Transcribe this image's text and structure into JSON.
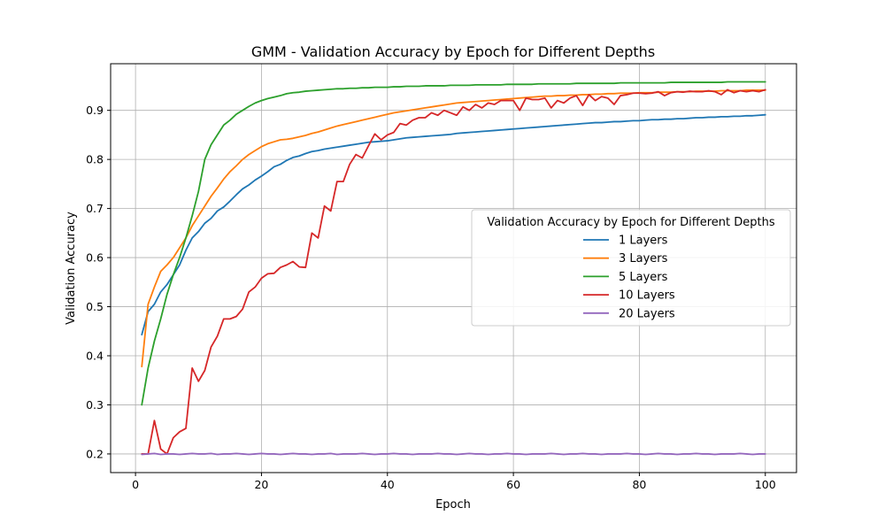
{
  "chart_data": {
    "type": "line",
    "title": "GMM - Validation Accuracy by Epoch for Different Depths",
    "xlabel": "Epoch",
    "ylabel": "Validation Accuracy",
    "xlim": [
      -3.95,
      104.95
    ],
    "ylim": [
      0.162,
      0.995
    ],
    "xticks": [
      0,
      20,
      40,
      60,
      80,
      100
    ],
    "xtick_labels": [
      "0",
      "20",
      "40",
      "60",
      "80",
      "100"
    ],
    "yticks": [
      0.2,
      0.3,
      0.4,
      0.5,
      0.6,
      0.7,
      0.8,
      0.9
    ],
    "ytick_labels": [
      "0.2",
      "0.3",
      "0.4",
      "0.5",
      "0.6",
      "0.7",
      "0.8",
      "0.9"
    ],
    "grid": true,
    "legend": {
      "title": "Validation Accuracy by Epoch for Different Depths",
      "placement": "center-right"
    },
    "x": [
      1,
      2,
      3,
      4,
      5,
      6,
      7,
      8,
      9,
      10,
      11,
      12,
      13,
      14,
      15,
      16,
      17,
      18,
      19,
      20,
      21,
      22,
      23,
      24,
      25,
      26,
      27,
      28,
      29,
      30,
      31,
      32,
      33,
      34,
      35,
      36,
      37,
      38,
      39,
      40,
      41,
      42,
      43,
      44,
      45,
      46,
      47,
      48,
      49,
      50,
      51,
      52,
      53,
      54,
      55,
      56,
      57,
      58,
      59,
      60,
      61,
      62,
      63,
      64,
      65,
      66,
      67,
      68,
      69,
      70,
      71,
      72,
      73,
      74,
      75,
      76,
      77,
      78,
      79,
      80,
      81,
      82,
      83,
      84,
      85,
      86,
      87,
      88,
      89,
      90,
      91,
      92,
      93,
      94,
      95,
      96,
      97,
      98,
      99,
      100
    ],
    "series": [
      {
        "name": "1 Layers",
        "color": "#1f77b4",
        "values": [
          0.443,
          0.49,
          0.505,
          0.53,
          0.545,
          0.565,
          0.585,
          0.615,
          0.64,
          0.653,
          0.67,
          0.68,
          0.695,
          0.703,
          0.715,
          0.728,
          0.74,
          0.748,
          0.758,
          0.766,
          0.775,
          0.785,
          0.79,
          0.798,
          0.804,
          0.807,
          0.812,
          0.816,
          0.818,
          0.821,
          0.823,
          0.825,
          0.827,
          0.829,
          0.831,
          0.833,
          0.835,
          0.836,
          0.837,
          0.838,
          0.84,
          0.842,
          0.844,
          0.845,
          0.846,
          0.847,
          0.848,
          0.849,
          0.85,
          0.851,
          0.853,
          0.854,
          0.855,
          0.856,
          0.857,
          0.858,
          0.859,
          0.86,
          0.861,
          0.862,
          0.863,
          0.864,
          0.865,
          0.866,
          0.867,
          0.868,
          0.869,
          0.87,
          0.871,
          0.872,
          0.873,
          0.874,
          0.875,
          0.875,
          0.876,
          0.877,
          0.877,
          0.878,
          0.879,
          0.879,
          0.88,
          0.881,
          0.881,
          0.882,
          0.882,
          0.883,
          0.883,
          0.884,
          0.885,
          0.885,
          0.886,
          0.886,
          0.887,
          0.887,
          0.888,
          0.888,
          0.889,
          0.889,
          0.89,
          0.891
        ]
      },
      {
        "name": "3 Layers",
        "color": "#ff7f0e",
        "values": [
          0.378,
          0.505,
          0.54,
          0.572,
          0.585,
          0.6,
          0.62,
          0.64,
          0.665,
          0.685,
          0.705,
          0.725,
          0.742,
          0.76,
          0.775,
          0.787,
          0.8,
          0.81,
          0.818,
          0.826,
          0.832,
          0.836,
          0.84,
          0.841,
          0.843,
          0.846,
          0.849,
          0.853,
          0.856,
          0.86,
          0.864,
          0.868,
          0.871,
          0.874,
          0.877,
          0.88,
          0.883,
          0.886,
          0.889,
          0.892,
          0.895,
          0.897,
          0.899,
          0.901,
          0.903,
          0.905,
          0.907,
          0.909,
          0.911,
          0.913,
          0.915,
          0.916,
          0.917,
          0.918,
          0.919,
          0.92,
          0.921,
          0.922,
          0.923,
          0.924,
          0.925,
          0.926,
          0.927,
          0.928,
          0.929,
          0.929,
          0.93,
          0.93,
          0.931,
          0.931,
          0.932,
          0.932,
          0.933,
          0.933,
          0.934,
          0.934,
          0.935,
          0.935,
          0.935,
          0.936,
          0.936,
          0.936,
          0.937,
          0.937,
          0.937,
          0.938,
          0.938,
          0.938,
          0.939,
          0.939,
          0.939,
          0.939,
          0.94,
          0.94,
          0.94,
          0.94,
          0.941,
          0.941,
          0.941,
          0.941
        ]
      },
      {
        "name": "5 Layers",
        "color": "#2ca02c",
        "values": [
          0.3,
          0.375,
          0.43,
          0.475,
          0.525,
          0.565,
          0.6,
          0.64,
          0.685,
          0.735,
          0.8,
          0.83,
          0.85,
          0.87,
          0.88,
          0.892,
          0.9,
          0.908,
          0.915,
          0.92,
          0.924,
          0.927,
          0.93,
          0.934,
          0.936,
          0.937,
          0.939,
          0.94,
          0.941,
          0.942,
          0.943,
          0.944,
          0.944,
          0.945,
          0.945,
          0.946,
          0.946,
          0.947,
          0.947,
          0.947,
          0.948,
          0.948,
          0.949,
          0.949,
          0.949,
          0.95,
          0.95,
          0.95,
          0.95,
          0.951,
          0.951,
          0.951,
          0.951,
          0.952,
          0.952,
          0.952,
          0.952,
          0.952,
          0.953,
          0.953,
          0.953,
          0.953,
          0.953,
          0.954,
          0.954,
          0.954,
          0.954,
          0.954,
          0.954,
          0.955,
          0.955,
          0.955,
          0.955,
          0.955,
          0.955,
          0.955,
          0.956,
          0.956,
          0.956,
          0.956,
          0.956,
          0.956,
          0.956,
          0.956,
          0.957,
          0.957,
          0.957,
          0.957,
          0.957,
          0.957,
          0.957,
          0.957,
          0.957,
          0.958,
          0.958,
          0.958,
          0.958,
          0.958,
          0.958,
          0.958
        ]
      },
      {
        "name": "10 Layers",
        "color": "#d62728",
        "values": [
          0.2,
          0.2,
          0.268,
          0.21,
          0.2,
          0.233,
          0.245,
          0.252,
          0.375,
          0.348,
          0.37,
          0.418,
          0.44,
          0.475,
          0.475,
          0.48,
          0.495,
          0.53,
          0.54,
          0.558,
          0.567,
          0.568,
          0.58,
          0.585,
          0.592,
          0.581,
          0.58,
          0.65,
          0.64,
          0.705,
          0.695,
          0.755,
          0.755,
          0.79,
          0.81,
          0.803,
          0.828,
          0.852,
          0.84,
          0.85,
          0.855,
          0.873,
          0.87,
          0.88,
          0.885,
          0.885,
          0.895,
          0.89,
          0.9,
          0.895,
          0.89,
          0.907,
          0.9,
          0.912,
          0.905,
          0.915,
          0.912,
          0.92,
          0.92,
          0.92,
          0.9,
          0.925,
          0.922,
          0.922,
          0.925,
          0.905,
          0.92,
          0.915,
          0.925,
          0.93,
          0.91,
          0.932,
          0.92,
          0.928,
          0.925,
          0.912,
          0.93,
          0.932,
          0.935,
          0.935,
          0.934,
          0.935,
          0.938,
          0.93,
          0.936,
          0.938,
          0.937,
          0.939,
          0.938,
          0.938,
          0.94,
          0.938,
          0.932,
          0.942,
          0.936,
          0.94,
          0.938,
          0.94,
          0.938,
          0.942
        ]
      },
      {
        "name": "20 Layers",
        "color": "#9467bd",
        "values": [
          0.199,
          0.2,
          0.201,
          0.199,
          0.2,
          0.2,
          0.199,
          0.2,
          0.201,
          0.2,
          0.2,
          0.201,
          0.199,
          0.2,
          0.2,
          0.201,
          0.2,
          0.199,
          0.2,
          0.201,
          0.2,
          0.2,
          0.199,
          0.2,
          0.201,
          0.2,
          0.2,
          0.199,
          0.2,
          0.2,
          0.201,
          0.199,
          0.2,
          0.2,
          0.2,
          0.201,
          0.2,
          0.199,
          0.2,
          0.2,
          0.201,
          0.2,
          0.2,
          0.199,
          0.2,
          0.2,
          0.2,
          0.201,
          0.2,
          0.2,
          0.199,
          0.2,
          0.201,
          0.2,
          0.2,
          0.199,
          0.2,
          0.2,
          0.201,
          0.2,
          0.2,
          0.199,
          0.2,
          0.2,
          0.2,
          0.201,
          0.2,
          0.199,
          0.2,
          0.2,
          0.201,
          0.2,
          0.2,
          0.199,
          0.2,
          0.2,
          0.2,
          0.201,
          0.2,
          0.2,
          0.199,
          0.2,
          0.201,
          0.2,
          0.2,
          0.199,
          0.2,
          0.2,
          0.201,
          0.2,
          0.2,
          0.199,
          0.2,
          0.2,
          0.2,
          0.201,
          0.2,
          0.199,
          0.2,
          0.2
        ]
      }
    ]
  }
}
